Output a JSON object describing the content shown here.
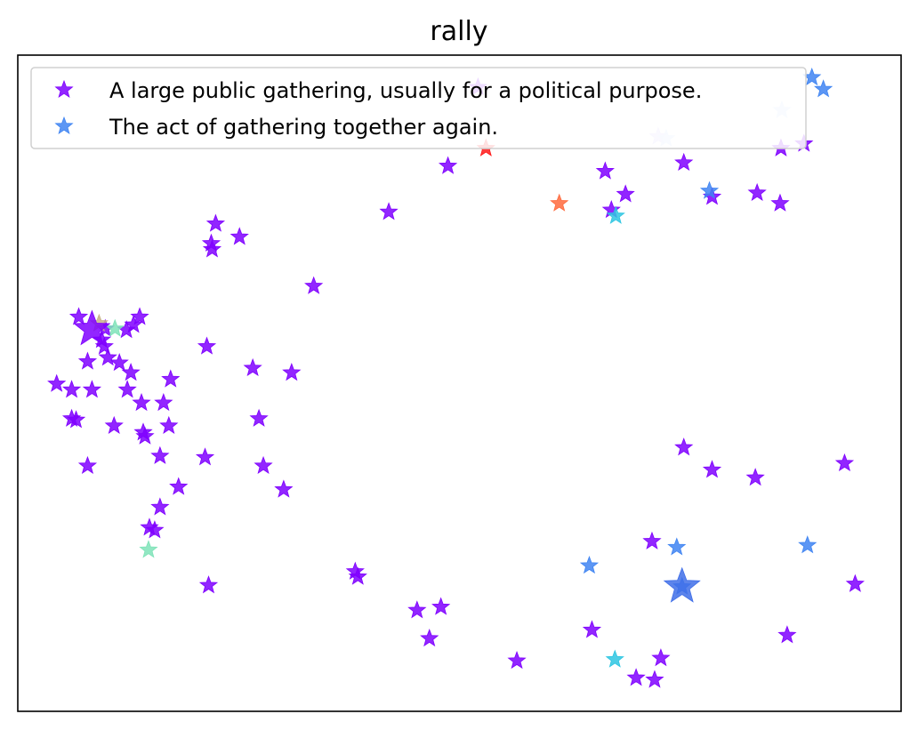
{
  "chart_data": {
    "type": "scatter",
    "title": "rally",
    "xlabel": "",
    "ylabel": "",
    "grid": false,
    "axis_ticks": false,
    "legend_position": "upper-left",
    "marker": "star",
    "xlim": [
      0,
      100
    ],
    "ylim": [
      0,
      100
    ],
    "series": [
      {
        "name": "A large public gathering, usually for a political purpose.",
        "color": "#7f00ff",
        "points": [
          {
            "x": 52.1,
            "y": 95.1
          },
          {
            "x": 48.7,
            "y": 83.1
          },
          {
            "x": 42.0,
            "y": 76.1
          },
          {
            "x": 22.4,
            "y": 74.3
          },
          {
            "x": 25.1,
            "y": 72.3
          },
          {
            "x": 21.9,
            "y": 71.3
          },
          {
            "x": 22.0,
            "y": 70.4
          },
          {
            "x": 33.5,
            "y": 64.8
          },
          {
            "x": 6.9,
            "y": 60.1
          },
          {
            "x": 13.8,
            "y": 60.1
          },
          {
            "x": 13.1,
            "y": 58.9
          },
          {
            "x": 12.3,
            "y": 58.1
          },
          {
            "x": 9.9,
            "y": 58.3
          },
          {
            "x": 9.5,
            "y": 56.6
          },
          {
            "x": 9.8,
            "y": 55.6
          },
          {
            "x": 10.2,
            "y": 53.9
          },
          {
            "x": 21.4,
            "y": 55.6
          },
          {
            "x": 7.9,
            "y": 53.3
          },
          {
            "x": 11.5,
            "y": 53.1
          },
          {
            "x": 26.6,
            "y": 52.3
          },
          {
            "x": 12.8,
            "y": 51.6
          },
          {
            "x": 31.0,
            "y": 51.6
          },
          {
            "x": 17.3,
            "y": 50.6
          },
          {
            "x": 4.4,
            "y": 49.9
          },
          {
            "x": 6.1,
            "y": 49.0
          },
          {
            "x": 8.4,
            "y": 49.0
          },
          {
            "x": 12.4,
            "y": 49.0
          },
          {
            "x": 14.0,
            "y": 47.0
          },
          {
            "x": 16.5,
            "y": 47.0
          },
          {
            "x": 6.1,
            "y": 44.6
          },
          {
            "x": 6.6,
            "y": 44.4
          },
          {
            "x": 27.3,
            "y": 44.6
          },
          {
            "x": 10.9,
            "y": 43.5
          },
          {
            "x": 17.1,
            "y": 43.5
          },
          {
            "x": 14.2,
            "y": 42.5
          },
          {
            "x": 14.4,
            "y": 41.9
          },
          {
            "x": 16.1,
            "y": 38.9
          },
          {
            "x": 21.2,
            "y": 38.7
          },
          {
            "x": 27.8,
            "y": 37.4
          },
          {
            "x": 7.9,
            "y": 37.4
          },
          {
            "x": 18.2,
            "y": 34.2
          },
          {
            "x": 30.1,
            "y": 33.8
          },
          {
            "x": 16.1,
            "y": 31.1
          },
          {
            "x": 14.9,
            "y": 28.0
          },
          {
            "x": 15.5,
            "y": 27.6
          },
          {
            "x": 21.6,
            "y": 19.2
          },
          {
            "x": 38.5,
            "y": 20.5
          },
          {
            "x": 38.2,
            "y": 21.3
          },
          {
            "x": 45.2,
            "y": 15.4
          },
          {
            "x": 47.9,
            "y": 15.9
          },
          {
            "x": 46.6,
            "y": 11.1
          },
          {
            "x": 56.5,
            "y": 7.7
          },
          {
            "x": 65.0,
            "y": 12.4
          },
          {
            "x": 70.0,
            "y": 5.1
          },
          {
            "x": 72.1,
            "y": 4.8
          },
          {
            "x": 72.8,
            "y": 8.1
          },
          {
            "x": 87.1,
            "y": 11.6
          },
          {
            "x": 94.8,
            "y": 19.4
          },
          {
            "x": 71.8,
            "y": 25.9
          },
          {
            "x": 75.4,
            "y": 40.2
          },
          {
            "x": 78.6,
            "y": 36.8
          },
          {
            "x": 83.5,
            "y": 35.6
          },
          {
            "x": 93.6,
            "y": 37.8
          },
          {
            "x": 66.5,
            "y": 82.3
          },
          {
            "x": 68.8,
            "y": 78.8
          },
          {
            "x": 67.2,
            "y": 76.4
          },
          {
            "x": 75.4,
            "y": 83.6
          },
          {
            "x": 78.6,
            "y": 78.4
          },
          {
            "x": 83.7,
            "y": 79.0
          },
          {
            "x": 86.3,
            "y": 77.4
          },
          {
            "x": 86.4,
            "y": 85.8
          },
          {
            "x": 89.0,
            "y": 86.5
          }
        ]
      },
      {
        "name": "The act of gathering together again.",
        "color": "#3f84f2",
        "points": [
          {
            "x": 89.9,
            "y": 96.6
          },
          {
            "x": 91.2,
            "y": 94.8
          },
          {
            "x": 78.3,
            "y": 79.3
          },
          {
            "x": 64.7,
            "y": 22.2
          },
          {
            "x": 74.6,
            "y": 25.0
          },
          {
            "x": 75.2,
            "y": 19.0
          },
          {
            "x": 89.4,
            "y": 25.3
          }
        ]
      }
    ],
    "other_points": [
      {
        "x": 53.0,
        "y": 85.8,
        "color": "#ff1a1a"
      },
      {
        "x": 61.3,
        "y": 77.4,
        "color": "#ff6a3d"
      },
      {
        "x": 67.7,
        "y": 75.5,
        "color": "#2ec6e2"
      },
      {
        "x": 67.6,
        "y": 7.9,
        "color": "#2ec6e2"
      },
      {
        "x": 11.0,
        "y": 58.3,
        "color": "#7fe3b8"
      },
      {
        "x": 14.8,
        "y": 24.6,
        "color": "#7fe3b8"
      },
      {
        "x": 9.2,
        "y": 59.1,
        "color": "#c8b088"
      },
      {
        "x": 72.5,
        "y": 87.6,
        "color": "#d4cfff"
      },
      {
        "x": 73.4,
        "y": 87.3,
        "color": "#cfe0ff"
      },
      {
        "x": 86.5,
        "y": 91.6,
        "color": "#cfe0ff"
      }
    ],
    "highlight_points": [
      {
        "x": 8.4,
        "y": 58.2,
        "color": "#7f00ff"
      },
      {
        "x": 75.2,
        "y": 19.0,
        "color": "#3f6ee8"
      }
    ]
  }
}
